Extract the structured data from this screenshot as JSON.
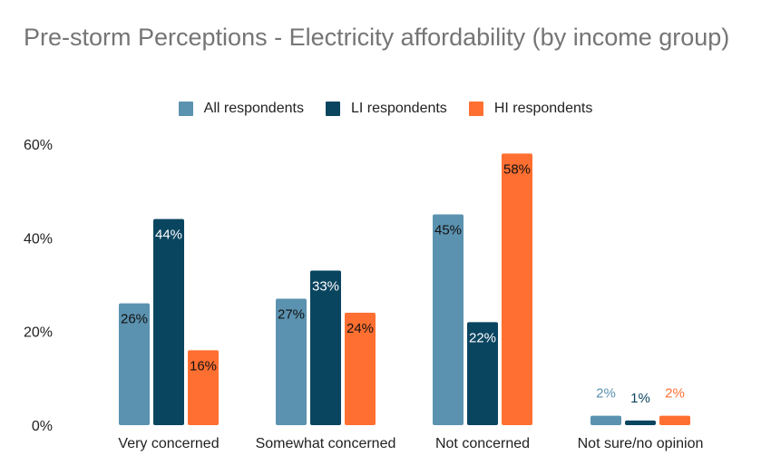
{
  "chart_data": {
    "type": "bar",
    "title": "Pre-storm Perceptions - Electricity affordability (by income group)",
    "categories": [
      "Very concerned",
      "Somewhat concerned",
      "Not concerned",
      "Not sure/no opinion"
    ],
    "series": [
      {
        "name": "All respondents",
        "color": "#5b92b0",
        "values": [
          26,
          27,
          45,
          2
        ],
        "labels": [
          "26%",
          "27%",
          "45%",
          "2%"
        ]
      },
      {
        "name": "LI respondents",
        "color": "#0a4560",
        "values": [
          44,
          33,
          22,
          1
        ],
        "labels": [
          "44%",
          "33%",
          "22%",
          "1%"
        ]
      },
      {
        "name": "HI respondents",
        "color": "#ff6f31",
        "values": [
          16,
          24,
          58,
          2
        ],
        "labels": [
          "16%",
          "24%",
          "58%",
          "2%"
        ]
      }
    ],
    "ylim": [
      0,
      60
    ],
    "yticks": [
      "0%",
      "20%",
      "40%",
      "60%"
    ],
    "ytick_values": [
      0,
      20,
      40,
      60
    ],
    "legend_position": "top",
    "grid": false
  }
}
